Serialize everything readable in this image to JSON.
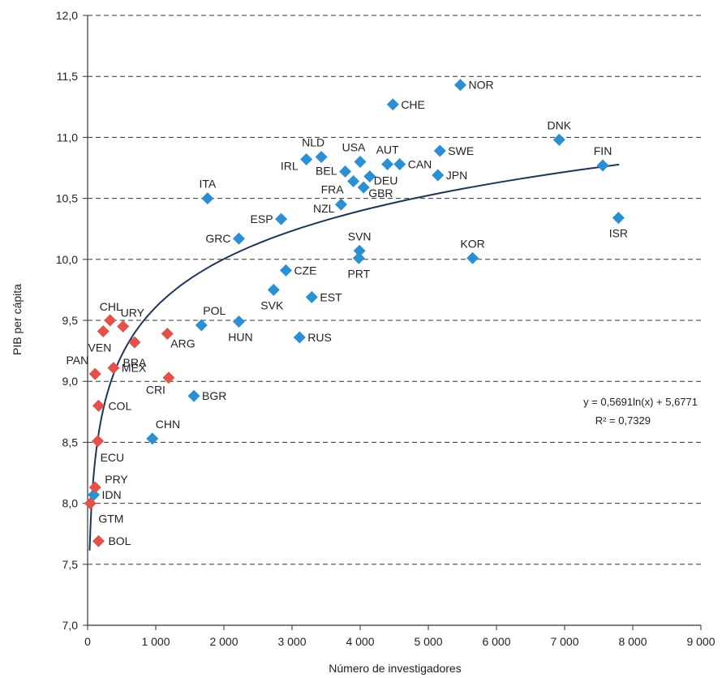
{
  "chart_data": {
    "type": "scatter",
    "xlabel": "Número de investigadores",
    "ylabel": "PIB per cápita",
    "xlim": [
      0,
      9000
    ],
    "ylim": [
      7.0,
      12.0
    ],
    "x_ticks": [
      0,
      1000,
      2000,
      3000,
      4000,
      5000,
      6000,
      7000,
      8000,
      9000
    ],
    "x_tick_labels": [
      "0",
      "1 000",
      "2 000",
      "3 000",
      "4 000",
      "5 000",
      "6 000",
      "7 000",
      "8 000",
      "9 000"
    ],
    "y_ticks": [
      7.0,
      7.5,
      8.0,
      8.5,
      9.0,
      9.5,
      10.0,
      10.5,
      11.0,
      11.5,
      12.0
    ],
    "y_tick_labels": [
      "7,0",
      "7,5",
      "8,0",
      "8,5",
      "9,0",
      "9,5",
      "10,0",
      "10,5",
      "11,0",
      "11,5",
      "12,0"
    ],
    "grid": "horizontal dashed",
    "series": [
      {
        "color": "#2b8fd3",
        "marker": "diamond",
        "points": [
          {
            "label": "NOR",
            "x": 5470,
            "y": 11.43
          },
          {
            "label": "CHE",
            "x": 4480,
            "y": 11.27
          },
          {
            "label": "DNK",
            "x": 6920,
            "y": 10.98
          },
          {
            "label": "FIN",
            "x": 7560,
            "y": 10.77
          },
          {
            "label": "SWE",
            "x": 5170,
            "y": 10.89
          },
          {
            "label": "JPN",
            "x": 5140,
            "y": 10.69
          },
          {
            "label": "CAN",
            "x": 4580,
            "y": 10.78
          },
          {
            "label": "AUT",
            "x": 4400,
            "y": 10.78
          },
          {
            "label": "USA",
            "x": 4000,
            "y": 10.8
          },
          {
            "label": "NLD",
            "x": 3430,
            "y": 10.84
          },
          {
            "label": "IRL",
            "x": 3210,
            "y": 10.82
          },
          {
            "label": "BEL",
            "x": 3780,
            "y": 10.72
          },
          {
            "label": "DEU",
            "x": 4140,
            "y": 10.68
          },
          {
            "label": "FRA",
            "x": 3900,
            "y": 10.64
          },
          {
            "label": "GBR",
            "x": 4050,
            "y": 10.59
          },
          {
            "label": "NZL",
            "x": 3720,
            "y": 10.45
          },
          {
            "label": "ITA",
            "x": 1760,
            "y": 10.5
          },
          {
            "label": "ESP",
            "x": 2840,
            "y": 10.33
          },
          {
            "label": "GRC",
            "x": 2220,
            "y": 10.17
          },
          {
            "label": "SVN",
            "x": 3990,
            "y": 10.07
          },
          {
            "label": "PRT",
            "x": 3980,
            "y": 10.01
          },
          {
            "label": "KOR",
            "x": 5650,
            "y": 10.01
          },
          {
            "label": "ISR",
            "x": 7790,
            "y": 10.34
          },
          {
            "label": "CZE",
            "x": 2910,
            "y": 9.91
          },
          {
            "label": "SVK",
            "x": 2730,
            "y": 9.75
          },
          {
            "label": "EST",
            "x": 3290,
            "y": 9.69
          },
          {
            "label": "POL",
            "x": 1670,
            "y": 9.46
          },
          {
            "label": "HUN",
            "x": 2220,
            "y": 9.49
          },
          {
            "label": "RUS",
            "x": 3110,
            "y": 9.36
          },
          {
            "label": "BGR",
            "x": 1560,
            "y": 8.88
          },
          {
            "label": "CHN",
            "x": 950,
            "y": 8.53
          },
          {
            "label": "IDN",
            "x": 90,
            "y": 8.07
          }
        ]
      },
      {
        "color": "#e2514a",
        "marker": "diamond",
        "points": [
          {
            "label": "CHL",
            "x": 330,
            "y": 9.5
          },
          {
            "label": "URY",
            "x": 520,
            "y": 9.45
          },
          {
            "label": "VEN",
            "x": 230,
            "y": 9.41
          },
          {
            "label": "BRA",
            "x": 690,
            "y": 9.32
          },
          {
            "label": "ARG",
            "x": 1170,
            "y": 9.39
          },
          {
            "label": "PAN",
            "x": 110,
            "y": 9.06
          },
          {
            "label": "MEX",
            "x": 380,
            "y": 9.11
          },
          {
            "label": "CRI",
            "x": 1190,
            "y": 9.03
          },
          {
            "label": "COL",
            "x": 160,
            "y": 8.8
          },
          {
            "label": "ECU",
            "x": 150,
            "y": 8.51
          },
          {
            "label": "PRY",
            "x": 110,
            "y": 8.13
          },
          {
            "label": "GTM",
            "x": 40,
            "y": 8.0
          },
          {
            "label": "BOL",
            "x": 160,
            "y": 7.69
          }
        ]
      }
    ],
    "trendline": {
      "type": "logarithmic",
      "a": 0.5691,
      "b": 5.6771,
      "x_range": [
        30,
        7800
      ],
      "color": "#1d3557",
      "equation": "y = 0,5691ln(x) + 5,6771",
      "r2": "R² = 0,7329"
    }
  }
}
